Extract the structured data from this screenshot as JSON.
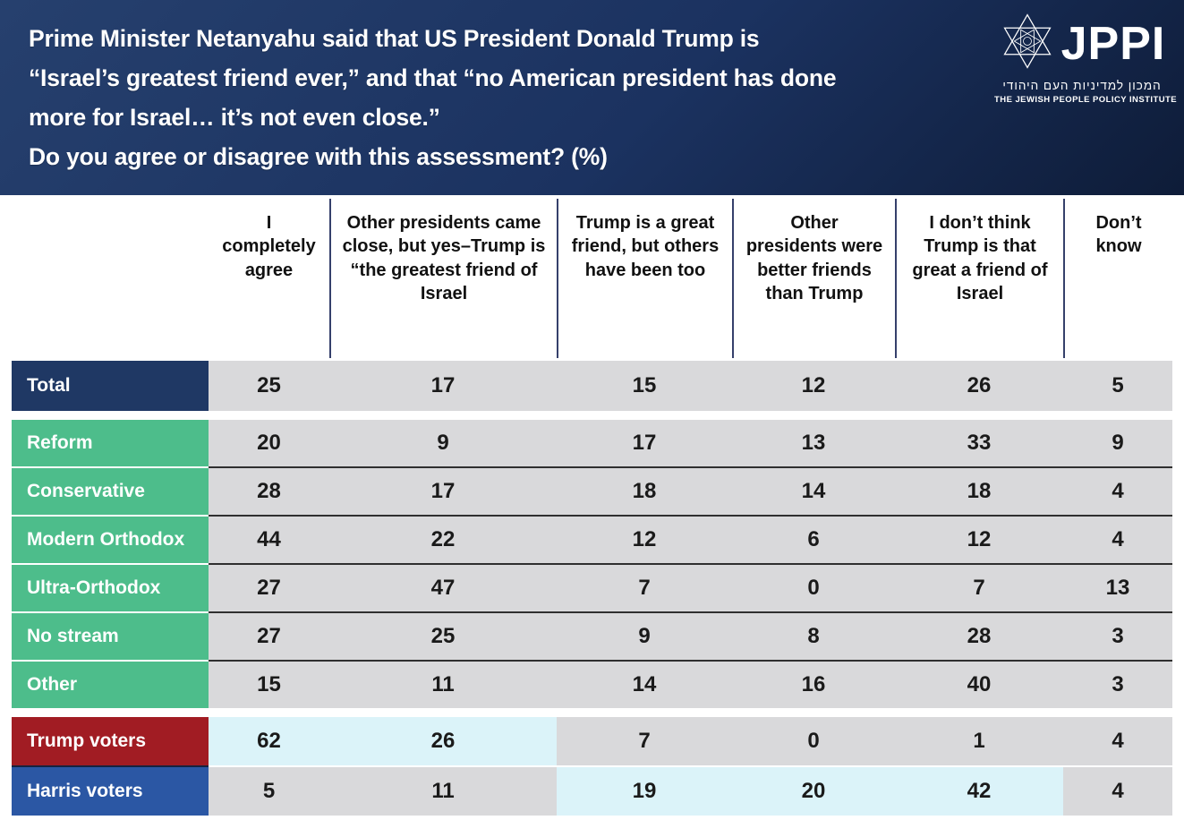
{
  "header": {
    "title_lines": [
      "Prime Minister Netanyahu said that US President Donald Trump is",
      "“Israel’s greatest friend ever,” and that “no American president has done",
      "more for Israel… it’s not even close.”",
      "Do you agree or disagree with this assessment? (%)"
    ],
    "logo": {
      "acronym": "JPPI",
      "hebrew_name": "המכון למדיניות העם היהודי",
      "english_name": "THE JEWISH PEOPLE POLICY INSTITUTE"
    }
  },
  "chart_data": {
    "type": "table",
    "title": "Prime Minister Netanyahu said that US President Donald Trump is “Israel’s greatest friend ever,” and that “no American president has done more for Israel… it’s not even close.” Do you agree or disagree with this assessment? (%)",
    "columns": [
      "I completely agree",
      "Other presidents came close, but yes–Trump is “the greatest friend of Israel",
      "Trump is a great friend, but others have been too",
      "Other presidents were better friends than Trump",
      "I don’t think Trump is that great a friend of Israel",
      "Don’t know"
    ],
    "groups": [
      {
        "id": "total",
        "rows": [
          {
            "label": "Total",
            "values": [
              25,
              17,
              15,
              12,
              26,
              5
            ],
            "label_color_key": "total-label",
            "highlight": []
          }
        ]
      },
      {
        "id": "denominations",
        "rows": [
          {
            "label": "Reform",
            "values": [
              20,
              9,
              17,
              13,
              33,
              9
            ],
            "label_color_key": "stream-label",
            "highlight": []
          },
          {
            "label": "Conservative",
            "values": [
              28,
              17,
              18,
              14,
              18,
              4
            ],
            "label_color_key": "stream-label",
            "highlight": []
          },
          {
            "label": "Modern Orthodox",
            "values": [
              44,
              22,
              12,
              6,
              12,
              4
            ],
            "label_color_key": "stream-label",
            "highlight": []
          },
          {
            "label": "Ultra-Orthodox",
            "values": [
              27,
              47,
              7,
              0,
              7,
              13
            ],
            "label_color_key": "stream-label",
            "highlight": []
          },
          {
            "label": "No stream",
            "values": [
              27,
              25,
              9,
              8,
              28,
              3
            ],
            "label_color_key": "stream-label",
            "highlight": []
          },
          {
            "label": "Other",
            "values": [
              15,
              11,
              14,
              16,
              40,
              3
            ],
            "label_color_key": "stream-label",
            "highlight": []
          }
        ]
      },
      {
        "id": "voters",
        "rows": [
          {
            "label": "Trump voters",
            "values": [
              62,
              26,
              7,
              0,
              1,
              4
            ],
            "label_color_key": "trump-label",
            "highlight": [
              0,
              1
            ]
          },
          {
            "label": "Harris voters",
            "values": [
              5,
              11,
              19,
              20,
              42,
              4
            ],
            "label_color_key": "harris-label",
            "highlight": [
              2,
              3,
              4
            ]
          }
        ]
      }
    ],
    "layout": {
      "legend": "none",
      "grid": "off"
    }
  },
  "colors": {
    "header_grad_1": "#26406e",
    "header_grad_2": "#0e1c38",
    "total_label": "#1f3864",
    "stream_label": "#4dbd8b",
    "trump_label": "#a11c23",
    "harris_label": "#2b57a4",
    "cell_gray": "#d9d9db",
    "cell_highlight": "#dbf3f9",
    "header_divider": "#35406b",
    "row_divider": "#2f2f2f",
    "label_divider_dark": "#16233f",
    "text_dark": "#1a1a1a"
  }
}
